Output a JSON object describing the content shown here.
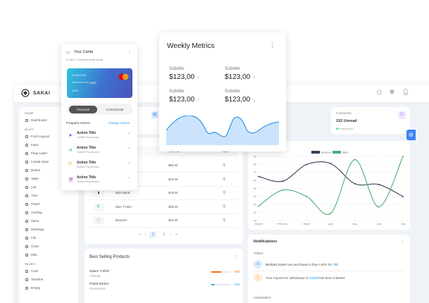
{
  "app": {
    "logo": "SAKAI",
    "top_icons": [
      "calendar-icon",
      "gear-icon",
      "user-icon"
    ]
  },
  "sidebar": {
    "sections": [
      {
        "label": "HOME",
        "items": [
          "Dashboard"
        ]
      },
      {
        "label": "UI KIT",
        "items": [
          "Form Layout",
          "Input",
          "Float Label",
          "Invalid State",
          "Button",
          "Table",
          "List",
          "Tree",
          "Panel",
          "Overlay",
          "Menu",
          "Message",
          "File",
          "Chart",
          "Misc"
        ]
      },
      {
        "label": "PAGES",
        "items": [
          "Crud",
          "Timeline",
          "Empty"
        ]
      }
    ]
  },
  "stats": {
    "comments": {
      "label": "Comments",
      "value": "152 Unread",
      "highlight": "85",
      "note": "responded"
    }
  },
  "products": {
    "headers": {
      "price": "Price",
      "sort_icon": "⇅",
      "view": "View"
    },
    "rows": [
      {
        "name": "",
        "price": "$65.00",
        "thumb": ""
      },
      {
        "name": "",
        "price": "$72.00",
        "thumb": ""
      },
      {
        "name": "Blue Band",
        "price": "$79.00",
        "thumb": "▮"
      },
      {
        "name": "Blue T-Shirt",
        "price": "$29.00",
        "thumb": "👕"
      },
      {
        "name": "Bracelet",
        "price": "$15.00",
        "thumb": "◯"
      }
    ],
    "pagination": {
      "first": "«",
      "prev": "‹",
      "pages": [
        "1",
        "2"
      ],
      "active": "1",
      "next": "›",
      "last": "»"
    }
  },
  "best_selling": {
    "title": "Best Selling Products",
    "items": [
      {
        "name": "Space T-Shirt",
        "category": "Clothing",
        "percent": 50,
        "label": "%50",
        "color": "#f97316"
      },
      {
        "name": "Portal Sticker",
        "category": "Accessories",
        "percent": 16,
        "label": "%16",
        "color": "#06b6d4"
      }
    ]
  },
  "chart_data": {
    "type": "line",
    "categories": [
      "January",
      "February",
      "March",
      "April",
      "May",
      "June",
      "July"
    ],
    "series": [
      {
        "name": "Revenue",
        "values": [
          65,
          59,
          80,
          81,
          56,
          55,
          40
        ],
        "color": "#334155"
      },
      {
        "name": "Sales",
        "values": [
          28,
          48,
          40,
          19,
          86,
          27,
          90
        ],
        "color": "#4caf7a"
      }
    ],
    "ylim": [
      10,
      90
    ],
    "yticks": [
      10,
      20,
      30,
      40,
      50,
      60,
      70,
      80,
      90
    ],
    "grid": true,
    "legend": "top"
  },
  "notifications": {
    "title": "Notifications",
    "today": "TODAY",
    "yesterday": "YESTERDAY",
    "items": [
      {
        "avatar": "S",
        "name": "Richard Jones",
        "text": " has purchased a blue t-shirt for ",
        "link": "79$"
      },
      {
        "avatar": "⇩",
        "text": "Your request for withdrawal of ",
        "link": "2500$",
        "text2": " has been initiated."
      }
    ]
  },
  "cards_popup": {
    "title": "Your Cards",
    "subtitle": "5 valid, 1 expired credit cards",
    "card": {
      "label": "Credit Card",
      "number": "**** **** **** 1234",
      "expiry": "11/21",
      "brand": "mastercard"
    },
    "toggle": {
      "options": [
        "Personal",
        "Commercial"
      ],
      "selected": "Personal"
    },
    "actions_label": "Frequent Actions",
    "change_label": "Change Actions",
    "actions": [
      {
        "title": "Action Title",
        "subtitle": "Subtitle Placeholder",
        "icon": "send-icon",
        "color": "#7c4dff"
      },
      {
        "title": "Action Title",
        "subtitle": "Subtitle Placeholder",
        "icon": "share-icon",
        "color": "#26a69a"
      },
      {
        "title": "Action Title",
        "subtitle": "Subtitle Placeholder",
        "icon": "shield-icon",
        "color": "#ff9800"
      },
      {
        "title": "Action Title",
        "subtitle": "Subtitle Placeholder",
        "icon": "cart-icon",
        "color": "#ab47bc"
      }
    ]
  },
  "weekly": {
    "title": "Weekly Metrics",
    "metrics": [
      {
        "subtitle": "Subtitle",
        "value": "$123,00",
        "trend": "up"
      },
      {
        "subtitle": "Subtitle",
        "value": "$123,00",
        "trend": "up"
      },
      {
        "subtitle": "Subtitle",
        "value": "$123,00",
        "trend": "up"
      },
      {
        "subtitle": "Subtitle",
        "value": "$123,00",
        "trend": "down"
      }
    ],
    "arrows": {
      "up": "↑",
      "down": "↓"
    }
  }
}
